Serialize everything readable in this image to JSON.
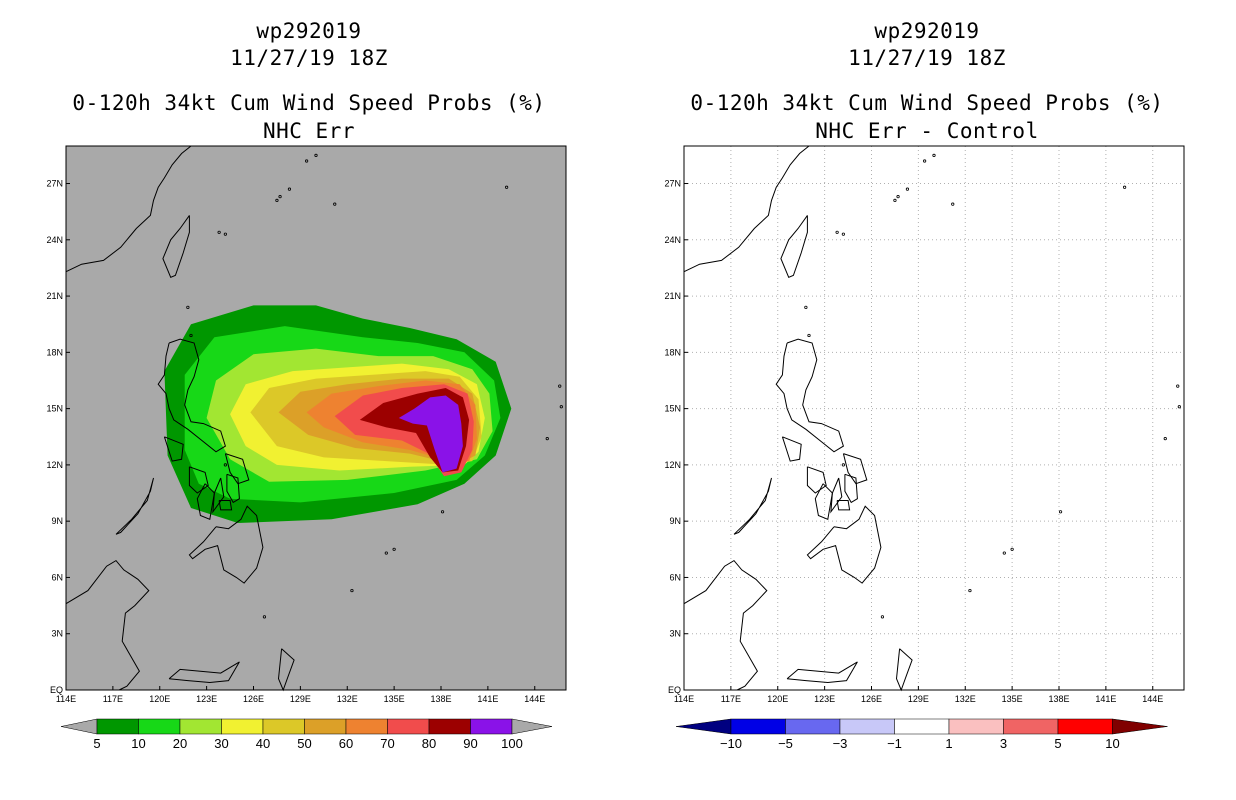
{
  "chart_data": [
    {
      "type": "map",
      "storm_id": "wp292019",
      "datetime": "11/27/19 18Z",
      "title": "0-120h 34kt Cum Wind Speed Probs (%)",
      "subtitle": "NHC Err",
      "background_color": "#a9a9a9",
      "lon_ticks": [
        "114E",
        "117E",
        "120E",
        "123E",
        "126E",
        "129E",
        "132E",
        "135E",
        "138E",
        "141E",
        "144E"
      ],
      "lat_ticks": [
        "EQ",
        "3N",
        "6N",
        "9N",
        "12N",
        "15N",
        "18N",
        "21N",
        "24N",
        "27N"
      ],
      "lon_range": [
        114,
        146
      ],
      "lat_range": [
        0,
        29
      ],
      "colorbar": {
        "labels": [
          "5",
          "10",
          "20",
          "30",
          "40",
          "50",
          "60",
          "70",
          "80",
          "90",
          "100"
        ],
        "colors": [
          "#009700",
          "#17d817",
          "#a2e632",
          "#f1f131",
          "#dcc828",
          "#dca028",
          "#ee8230",
          "#f14c4c",
          "#9c0000",
          "#8a12e8"
        ]
      },
      "contours": [
        {
          "level": 5,
          "color": "#009700",
          "points": [
            [
              120.5,
              12.5
            ],
            [
              120.3,
              17
            ],
            [
              122,
              19.5
            ],
            [
              126,
              20.5
            ],
            [
              130,
              20.5
            ],
            [
              133,
              19.8
            ],
            [
              136,
              19.3
            ],
            [
              139,
              18.7
            ],
            [
              141.5,
              17.5
            ],
            [
              142.5,
              15
            ],
            [
              141.5,
              12.5
            ],
            [
              139.5,
              11
            ],
            [
              136.5,
              9.9
            ],
            [
              131,
              9.1
            ],
            [
              125,
              8.9
            ],
            [
              122,
              9.7
            ]
          ]
        },
        {
          "level": 10,
          "color": "#17d817",
          "points": [
            [
              121.6,
              12.8
            ],
            [
              121.6,
              16.8
            ],
            [
              123.5,
              18.8
            ],
            [
              128,
              19.4
            ],
            [
              133,
              18.8
            ],
            [
              136.5,
              18.5
            ],
            [
              139.5,
              18
            ],
            [
              141.4,
              16.5
            ],
            [
              141.8,
              14.5
            ],
            [
              140.8,
              12.5
            ],
            [
              139,
              11.2
            ],
            [
              135,
              10.5
            ],
            [
              129,
              10
            ],
            [
              124.5,
              10.2
            ],
            [
              122.5,
              11
            ]
          ]
        },
        {
          "level": 20,
          "color": "#a2e632",
          "points": [
            [
              123,
              14.5
            ],
            [
              123.6,
              16.5
            ],
            [
              126,
              17.9
            ],
            [
              130,
              18.2
            ],
            [
              134,
              17.8
            ],
            [
              137.5,
              17.8
            ],
            [
              140,
              17.1
            ],
            [
              141.1,
              15.8
            ],
            [
              141.3,
              13.8
            ],
            [
              140.3,
              12.3
            ],
            [
              137,
              11.7
            ],
            [
              132,
              11.2
            ],
            [
              127,
              11.1
            ],
            [
              124.5,
              12.3
            ]
          ]
        },
        {
          "level": 30,
          "color": "#f1f131",
          "points": [
            [
              124.5,
              14.7
            ],
            [
              125.5,
              16.3
            ],
            [
              128.5,
              17
            ],
            [
              132,
              17.2
            ],
            [
              135.5,
              17.4
            ],
            [
              138.5,
              17.1
            ],
            [
              140.3,
              16.3
            ],
            [
              140.8,
              14.5
            ],
            [
              140.4,
              12.7
            ],
            [
              139.5,
              12
            ],
            [
              136,
              11.9
            ],
            [
              131.5,
              11.7
            ],
            [
              127.5,
              12
            ],
            [
              125.5,
              13
            ]
          ]
        },
        {
          "level": 40,
          "color": "#dcc828",
          "points": [
            [
              125.8,
              14.8
            ],
            [
              127,
              16.1
            ],
            [
              130,
              16.6
            ],
            [
              133.5,
              16.8
            ],
            [
              137,
              17
            ],
            [
              139.2,
              16.7
            ],
            [
              140.4,
              15.5
            ],
            [
              140.6,
              13.5
            ],
            [
              140,
              12.2
            ],
            [
              138.5,
              12
            ],
            [
              134.5,
              12.2
            ],
            [
              130.5,
              12.4
            ],
            [
              127.5,
              13
            ]
          ]
        },
        {
          "level": 50,
          "color": "#dca028",
          "points": [
            [
              127.6,
              14.8
            ],
            [
              129,
              15.9
            ],
            [
              132,
              16.3
            ],
            [
              135.5,
              16.6
            ],
            [
              138.5,
              16.6
            ],
            [
              140,
              15.8
            ],
            [
              140.5,
              14
            ],
            [
              140.2,
              12.5
            ],
            [
              139,
              12
            ],
            [
              136,
              12.6
            ],
            [
              132.5,
              12.9
            ],
            [
              129.5,
              13.6
            ]
          ]
        },
        {
          "level": 60,
          "color": "#ee8230",
          "points": [
            [
              129.4,
              14.8
            ],
            [
              131,
              15.8
            ],
            [
              134,
              16.2
            ],
            [
              137,
              16.5
            ],
            [
              139.2,
              16.3
            ],
            [
              140.2,
              15.2
            ],
            [
              140.3,
              13.4
            ],
            [
              139.8,
              12.2
            ],
            [
              138.5,
              12.2
            ],
            [
              136,
              12.8
            ],
            [
              133,
              13.2
            ],
            [
              130.5,
              14
            ]
          ]
        },
        {
          "level": 70,
          "color": "#f14c4c",
          "points": [
            [
              131.2,
              14.6
            ],
            [
              133,
              15.7
            ],
            [
              135.5,
              16.1
            ],
            [
              138.2,
              16.3
            ],
            [
              139.7,
              15.8
            ],
            [
              140.1,
              14.3
            ],
            [
              140,
              12.8
            ],
            [
              139.3,
              11.6
            ],
            [
              138.2,
              11.4
            ],
            [
              137.2,
              12.6
            ],
            [
              135.5,
              13.3
            ],
            [
              132.5,
              13.6
            ]
          ]
        },
        {
          "level": 80,
          "color": "#9c0000",
          "points": [
            [
              132.8,
              14.4
            ],
            [
              134.3,
              15.3
            ],
            [
              136.5,
              15.8
            ],
            [
              138.3,
              16.1
            ],
            [
              139.4,
              15.6
            ],
            [
              139.8,
              14.4
            ],
            [
              139.6,
              13
            ],
            [
              139.1,
              11.7
            ],
            [
              138.1,
              11.6
            ],
            [
              137.3,
              12.4
            ],
            [
              136.4,
              13.7
            ],
            [
              134.5,
              14
            ]
          ]
        },
        {
          "level": 90,
          "color": "#8a12e8",
          "points": [
            [
              135.3,
              14.5
            ],
            [
              136.3,
              15
            ],
            [
              137.3,
              15.6
            ],
            [
              138.3,
              15.7
            ],
            [
              139.1,
              15.2
            ],
            [
              139.3,
              14.2
            ],
            [
              139.4,
              13
            ],
            [
              139,
              11.8
            ],
            [
              138.1,
              11.6
            ],
            [
              137.6,
              12.8
            ],
            [
              137.1,
              14.1
            ],
            [
              136.2,
              14.2
            ]
          ]
        }
      ]
    },
    {
      "type": "map",
      "storm_id": "wp292019",
      "datetime": "11/27/19 18Z",
      "title": "0-120h 34kt Cum Wind Speed Probs (%)",
      "subtitle": "NHC Err - Control",
      "background_color": "#ffffff",
      "lon_ticks": [
        "114E",
        "117E",
        "120E",
        "123E",
        "126E",
        "129E",
        "132E",
        "135E",
        "138E",
        "141E",
        "144E"
      ],
      "lat_ticks": [
        "EQ",
        "3N",
        "6N",
        "9N",
        "12N",
        "15N",
        "18N",
        "21N",
        "24N",
        "27N"
      ],
      "lon_range": [
        114,
        146
      ],
      "lat_range": [
        0,
        29
      ],
      "colorbar": {
        "labels": [
          "−10",
          "−5",
          "−3",
          "−1",
          "1",
          "3",
          "5",
          "10"
        ],
        "colors": [
          "#000080",
          "#0000e6",
          "#6868f0",
          "#c8c8f8",
          "#ffffff",
          "#fac0c0",
          "#f06464",
          "#ff0000",
          "#800000"
        ]
      },
      "contours": []
    }
  ]
}
